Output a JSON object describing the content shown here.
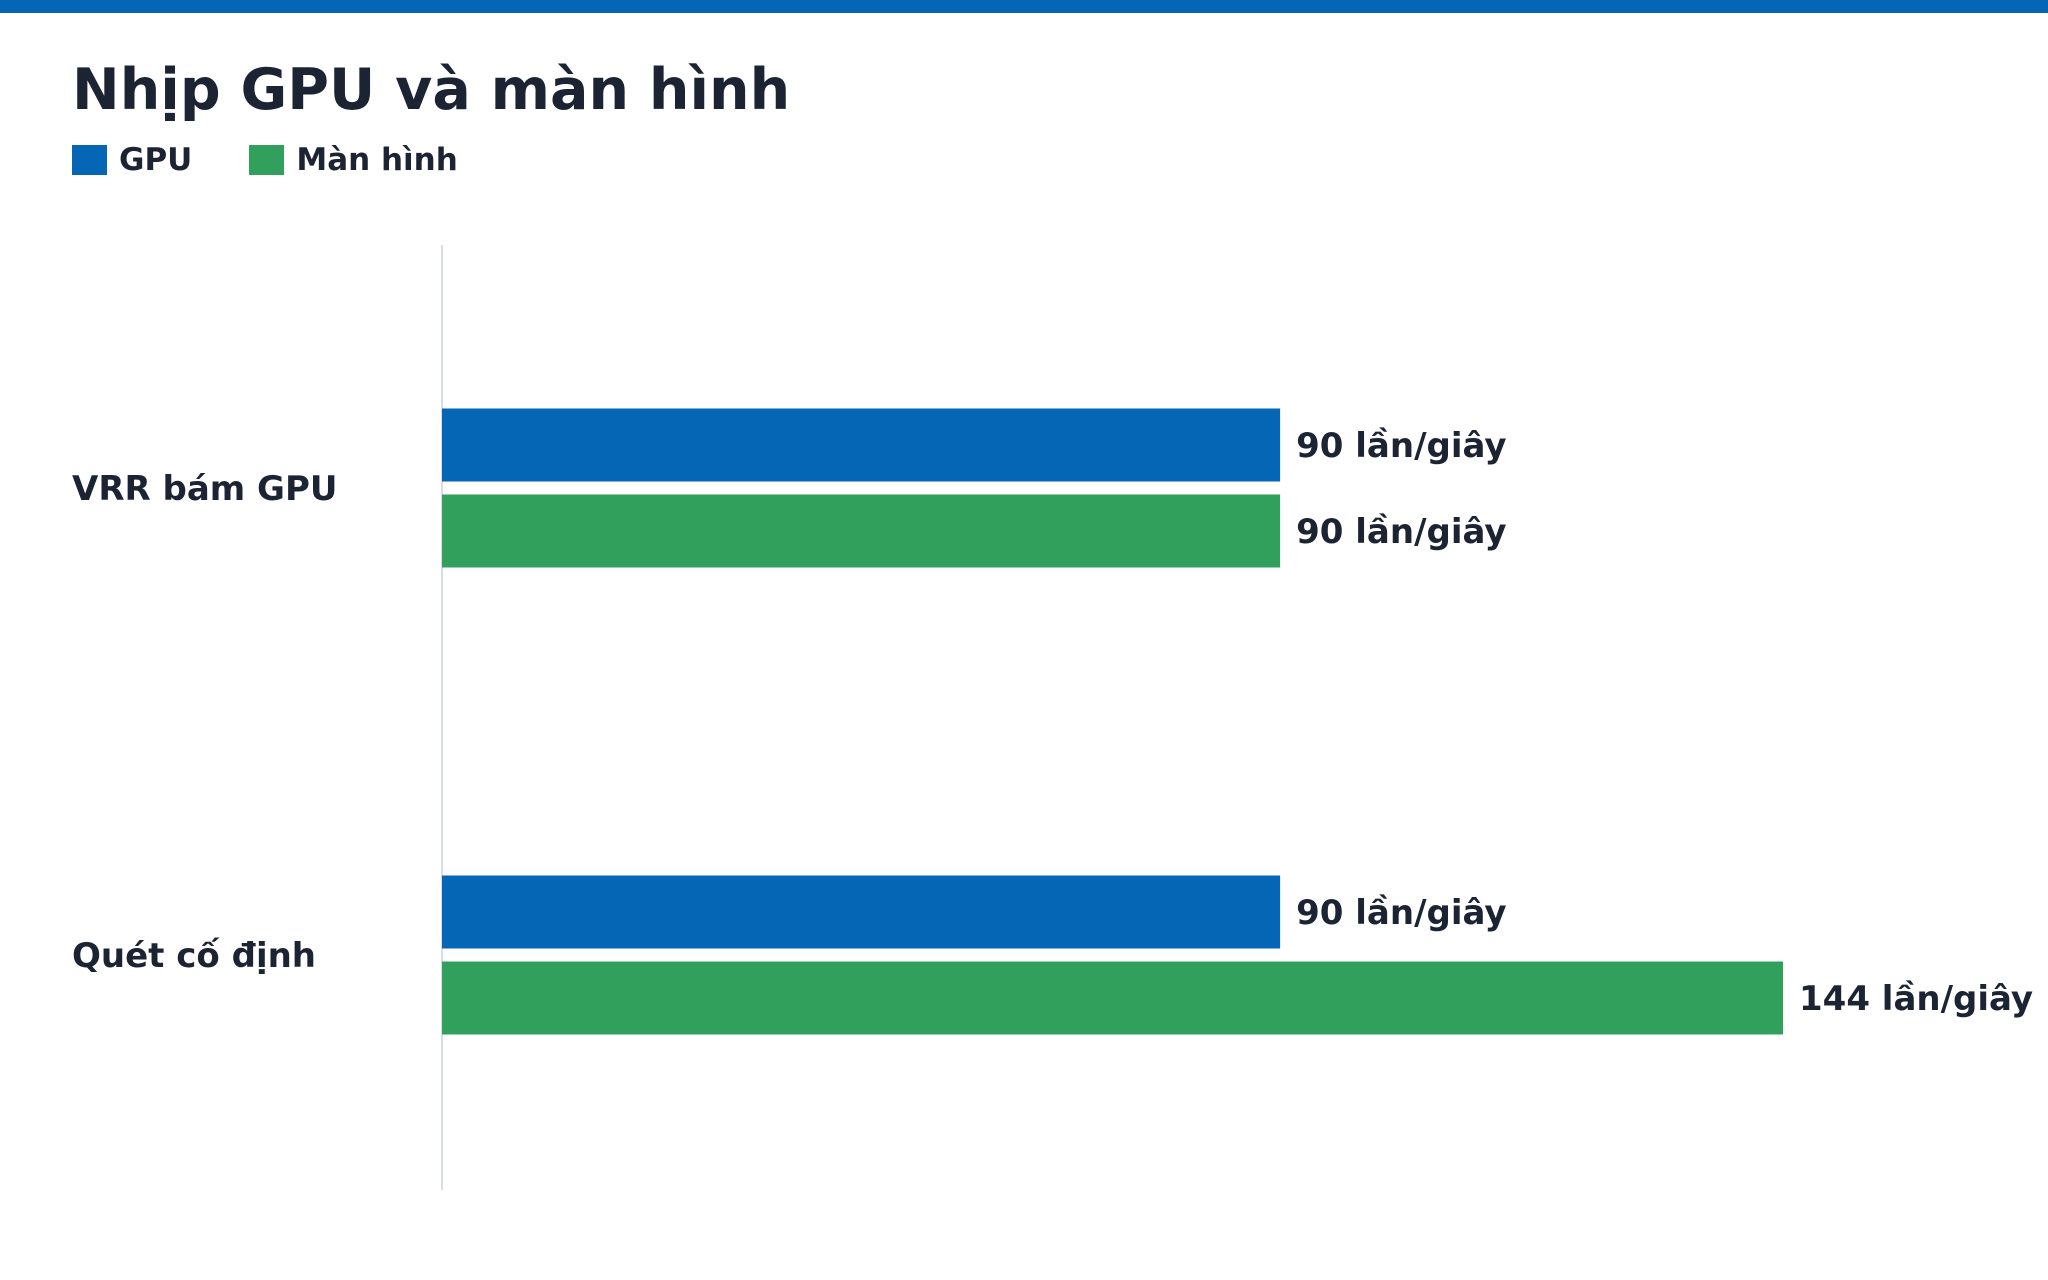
{
  "title": "Nhịp GPU và màn hình",
  "colors": {
    "accent_bar": "#0466b4",
    "text": "#1c2434",
    "axis": "#d8dde6"
  },
  "legend": [
    {
      "label": "GPU",
      "color": "#0466b4"
    },
    {
      "label": "Màn hình",
      "color": "#30a05c"
    }
  ],
  "chart_data": {
    "type": "bar",
    "orientation": "horizontal",
    "title": "Nhịp GPU và màn hình",
    "unit": "lần/giây",
    "categories": [
      "VRR bám GPU",
      "Quét cố định"
    ],
    "series": [
      {
        "name": "GPU",
        "color": "#0466b4",
        "values": [
          90,
          90
        ],
        "labels": [
          "90 lần/giây",
          "90 lần/giây"
        ]
      },
      {
        "name": "Màn hình",
        "color": "#30a05c",
        "values": [
          90,
          144
        ],
        "labels": [
          "90 lần/giây",
          "144 lần/giây"
        ]
      }
    ],
    "xlim": [
      0,
      144
    ],
    "grid": false,
    "legend_position": "top-left"
  }
}
